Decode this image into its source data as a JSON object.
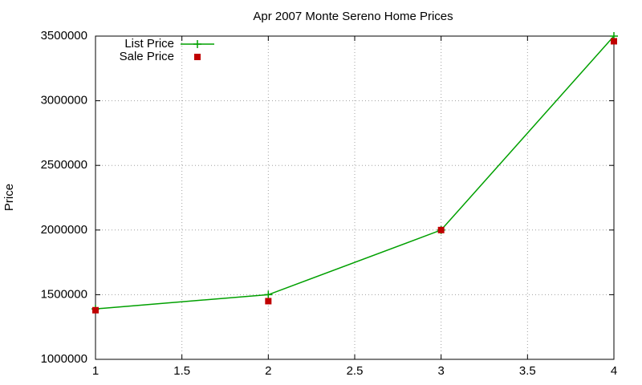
{
  "chart_data": {
    "type": "line",
    "title": "Apr 2007 Monte Sereno Home Prices",
    "y_label": "Price",
    "x": [
      1,
      2,
      3,
      4
    ],
    "series": [
      {
        "name": "List Price",
        "color": "#00a000",
        "style": "linespoints",
        "values": [
          1390000,
          1500000,
          2000000,
          3500000
        ]
      },
      {
        "name": "Sale Price",
        "color": "#c00000",
        "style": "points",
        "values": [
          1380000,
          1450000,
          2000000,
          3460000
        ]
      }
    ],
    "xlim": [
      1,
      4
    ],
    "xticks": [
      1,
      1.5,
      2,
      2.5,
      3,
      3.5,
      4
    ],
    "ylim": [
      1000000,
      3500000
    ],
    "yticks": [
      1000000,
      1500000,
      2000000,
      2500000,
      3000000,
      3500000
    ],
    "grid": true,
    "legend": "top-left"
  }
}
